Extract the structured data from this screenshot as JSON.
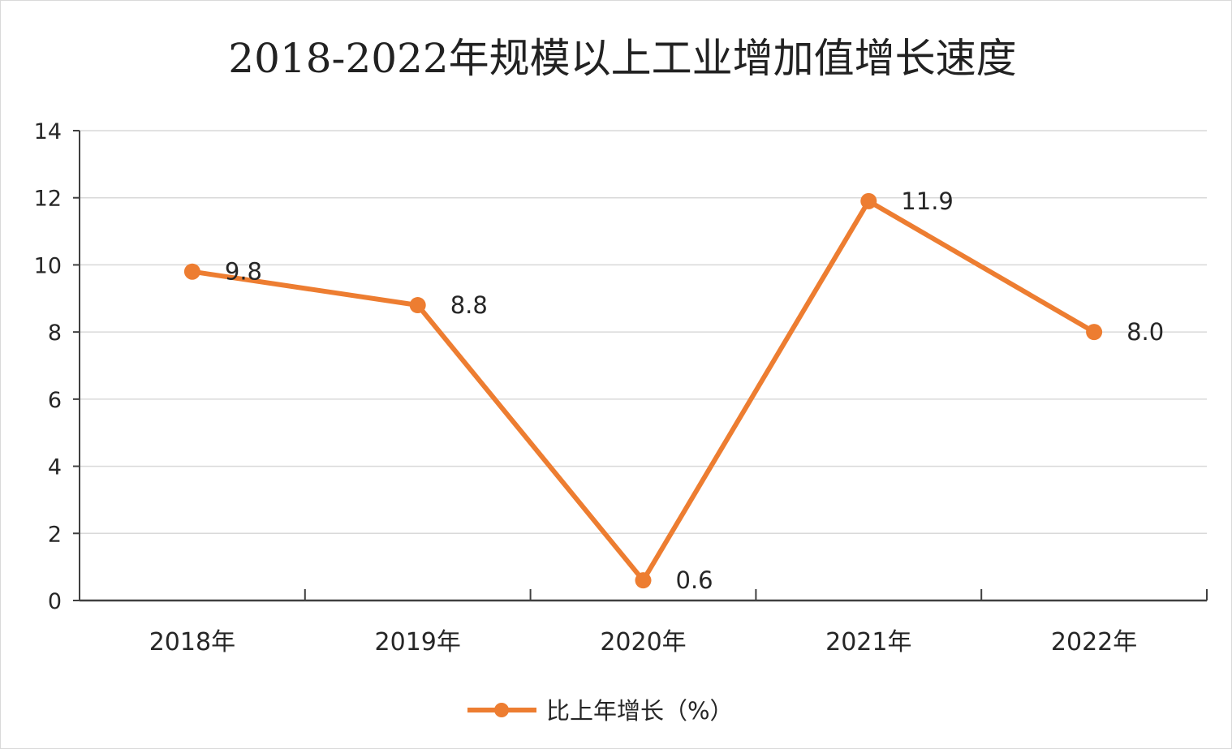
{
  "chart_data": {
    "type": "line",
    "title": "2018-2022年规模以上工业增加值增长速度",
    "xlabel": "",
    "ylabel": "",
    "categories": [
      "2018年",
      "2019年",
      "2020年",
      "2021年",
      "2022年"
    ],
    "series": [
      {
        "name": "比上年增长（%）",
        "values": [
          9.8,
          8.8,
          0.6,
          11.9,
          8.0
        ],
        "labels": [
          "9.8",
          "8.8",
          "0.6",
          "11.9",
          "8.0"
        ],
        "color": "#ED7D31"
      }
    ],
    "ylim": [
      0,
      14
    ],
    "yticks": [
      0,
      2,
      4,
      6,
      8,
      10,
      12,
      14
    ],
    "grid": true,
    "legend": "bottom"
  }
}
